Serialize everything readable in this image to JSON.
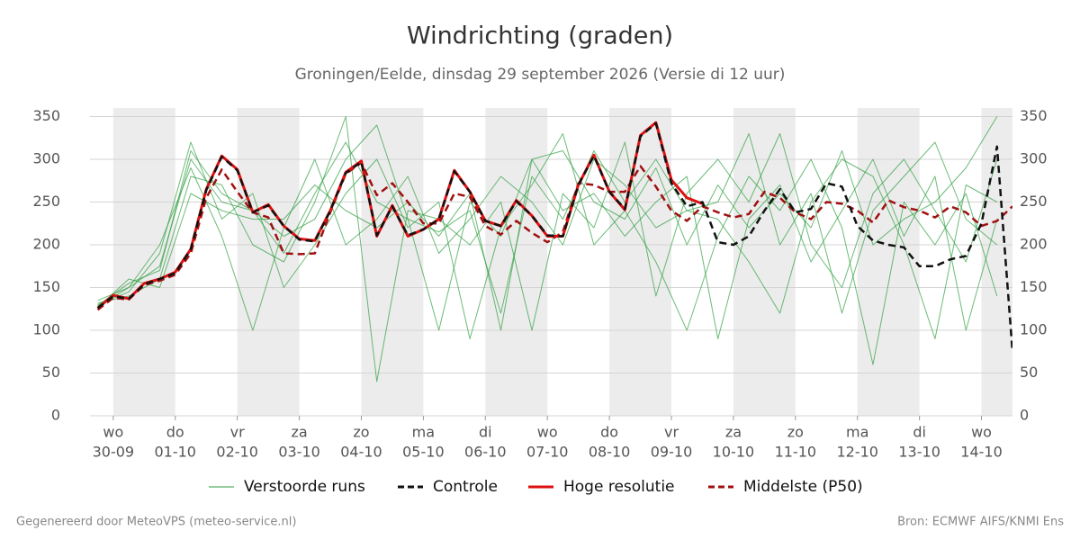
{
  "chart_data": {
    "type": "line",
    "title": "Windrichting (graden)",
    "subtitle": "Groningen/Eelde, dinsdag 29 september 2026 (Versie di 12 uur)",
    "footer_left": "Gegenereerd door MeteoVPS (meteo-service.nl)",
    "footer_right": "Bron: ECMWF AIFS/KNMI Ens",
    "xlim": [
      -9,
      348
    ],
    "xticks": [
      {
        "value": 0,
        "label": "wo",
        "date": "30-09"
      },
      {
        "value": 24,
        "label": "do",
        "date": "01-10"
      },
      {
        "value": 48,
        "label": "vr",
        "date": "02-10"
      },
      {
        "value": 72,
        "label": "za",
        "date": "03-10"
      },
      {
        "value": 96,
        "label": "zo",
        "date": "04-10"
      },
      {
        "value": 120,
        "label": "ma",
        "date": "05-10"
      },
      {
        "value": 144,
        "label": "di",
        "date": "06-10"
      },
      {
        "value": 168,
        "label": "wo",
        "date": "07-10"
      },
      {
        "value": 192,
        "label": "do",
        "date": "08-10"
      },
      {
        "value": 216,
        "label": "vr",
        "date": "09-10"
      },
      {
        "value": 240,
        "label": "za",
        "date": "10-10"
      },
      {
        "value": 264,
        "label": "zo",
        "date": "11-10"
      },
      {
        "value": 288,
        "label": "ma",
        "date": "12-10"
      },
      {
        "value": 312,
        "label": "di",
        "date": "13-10"
      },
      {
        "value": 336,
        "label": "wo",
        "date": "14-10"
      }
    ],
    "ylim": [
      0,
      360
    ],
    "yticks": [
      0,
      50,
      100,
      150,
      200,
      250,
      300,
      350
    ],
    "y2lim": [
      0,
      360
    ],
    "y2ticks": [
      0,
      50,
      100,
      150,
      200,
      250,
      300,
      350
    ],
    "grid": true,
    "legend": "bottom",
    "ensemble": {
      "name": "Verstoorde runs",
      "color": "#2e9e3e",
      "x": [
        -6,
        6,
        18,
        30,
        42,
        54,
        66,
        78,
        90,
        102,
        114,
        126,
        138,
        150,
        162,
        174,
        186,
        198,
        210,
        222,
        234,
        246,
        258,
        270,
        282,
        294,
        306,
        318,
        330,
        342
      ],
      "runs": [
        [
          128,
          150,
          175,
          300,
          250,
          240,
          210,
          230,
          300,
          340,
          230,
          215,
          240,
          120,
          280,
          230,
          310,
          250,
          300,
          240,
          230,
          180,
          120,
          250,
          300,
          280,
          200,
          90,
          270,
          250
        ],
        [
          132,
          140,
          160,
          280,
          270,
          200,
          180,
          250,
          350,
          40,
          240,
          230,
          200,
          250,
          100,
          260,
          220,
          320,
          140,
          260,
          300,
          250,
          330,
          200,
          150,
          260,
          300,
          240,
          180,
          300
        ],
        [
          130,
          145,
          190,
          320,
          230,
          260,
          150,
          200,
          260,
          300,
          220,
          250,
          90,
          220,
          270,
          330,
          200,
          240,
          180,
          100,
          210,
          280,
          240,
          300,
          220,
          60,
          250,
          200,
          260,
          140
        ],
        [
          127,
          160,
          150,
          260,
          240,
          230,
          230,
          270,
          240,
          220,
          250,
          210,
          260,
          100,
          300,
          240,
          260,
          210,
          250,
          280,
          90,
          230,
          270,
          180,
          240,
          300,
          210,
          280,
          100,
          230
        ],
        [
          135,
          150,
          200,
          290,
          210,
          100,
          220,
          300,
          200,
          230,
          280,
          190,
          230,
          280,
          250,
          200,
          300,
          270,
          220,
          240,
          250,
          330,
          200,
          260,
          120,
          240,
          280,
          320,
          230,
          200
        ],
        [
          129,
          155,
          170,
          310,
          260,
          240,
          190,
          260,
          320,
          250,
          230,
          100,
          250,
          210,
          300,
          310,
          250,
          230,
          290,
          200,
          270,
          220,
          260,
          220,
          310,
          200,
          230,
          250,
          290,
          350
        ]
      ]
    },
    "x": [
      -6,
      0,
      6,
      12,
      18,
      24,
      30,
      36,
      42,
      48,
      54,
      60,
      66,
      72,
      78,
      84,
      90,
      96,
      102,
      108,
      114,
      120,
      126,
      132,
      138,
      144,
      150,
      156,
      162,
      168,
      174,
      180,
      186,
      192,
      198,
      204,
      210,
      216,
      222,
      228,
      234,
      240,
      246,
      252,
      258,
      264,
      270,
      276,
      282,
      288,
      294,
      300,
      306,
      312,
      318,
      324,
      330,
      336,
      342,
      348
    ],
    "series": [
      {
        "name": "Controle",
        "color": "#111111",
        "dash": true,
        "values": [
          126,
          140,
          137,
          154,
          160,
          167,
          195,
          264,
          303,
          287,
          238,
          246,
          222,
          206,
          204,
          240,
          284,
          297,
          211,
          245,
          211,
          218,
          230,
          286,
          262,
          228,
          222,
          251,
          234,
          211,
          210,
          270,
          304,
          262,
          242,
          327,
          342,
          272,
          245,
          250,
          203,
          200,
          210,
          240,
          265,
          238,
          242,
          272,
          268,
          222,
          205,
          200,
          197,
          175,
          175,
          183,
          187,
          225,
          315,
          75
        ]
      },
      {
        "name": "Hoge resolutie",
        "color": "#dd1111",
        "dash": false,
        "values": [
          126,
          141,
          137,
          155,
          160,
          168,
          195,
          265,
          304,
          288,
          238,
          247,
          222,
          207,
          205,
          240,
          285,
          298,
          210,
          246,
          210,
          218,
          230,
          287,
          262,
          228,
          222,
          252,
          234,
          210,
          210,
          270,
          305,
          262,
          241,
          328,
          343,
          276,
          255,
          248,
          null,
          null,
          null,
          null,
          null,
          null,
          null,
          null,
          null,
          null,
          null,
          null,
          null,
          null,
          null,
          null,
          null,
          null,
          null,
          null
        ]
      },
      {
        "name": "Middelste (P50)",
        "color": "#a01010",
        "dash": true,
        "values": [
          124,
          138,
          136,
          153,
          158,
          165,
          190,
          255,
          288,
          262,
          238,
          232,
          190,
          189,
          190,
          238,
          283,
          296,
          258,
          272,
          250,
          225,
          225,
          260,
          256,
          222,
          212,
          228,
          214,
          203,
          215,
          272,
          270,
          262,
          262,
          292,
          268,
          240,
          228,
          245,
          238,
          232,
          236,
          262,
          255,
          238,
          230,
          250,
          248,
          240,
          226,
          252,
          244,
          240,
          232,
          245,
          238,
          222,
          228,
          245
        ]
      }
    ]
  }
}
